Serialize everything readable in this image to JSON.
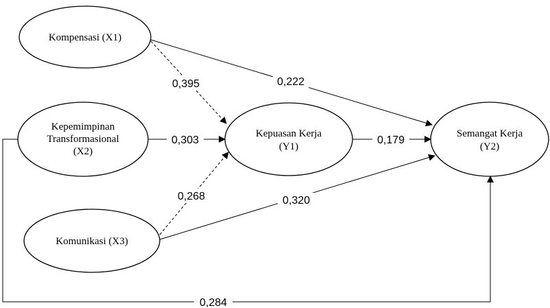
{
  "nodes": {
    "x1": {
      "lines": [
        "Kompensasi (X1)"
      ]
    },
    "x2": {
      "lines": [
        "Kepemimpinan",
        "Transformasional",
        "(X2)"
      ]
    },
    "x3": {
      "lines": [
        "Komunikasi (X3)"
      ]
    },
    "y1": {
      "lines": [
        "Kepuasan Kerja",
        "(Y1)"
      ]
    },
    "y2": {
      "lines": [
        "Semangat Kerja",
        "(Y2)"
      ]
    }
  },
  "edges": {
    "x1_y1": {
      "label": "0,395"
    },
    "x1_y2": {
      "label": "0,222"
    },
    "x2_y1": {
      "label": "0,303"
    },
    "y1_y2": {
      "label": "0,179"
    },
    "x3_y1": {
      "label": "0,268"
    },
    "x3_y2": {
      "label": "0,320"
    },
    "x2_y2": {
      "label": "0,284"
    }
  }
}
